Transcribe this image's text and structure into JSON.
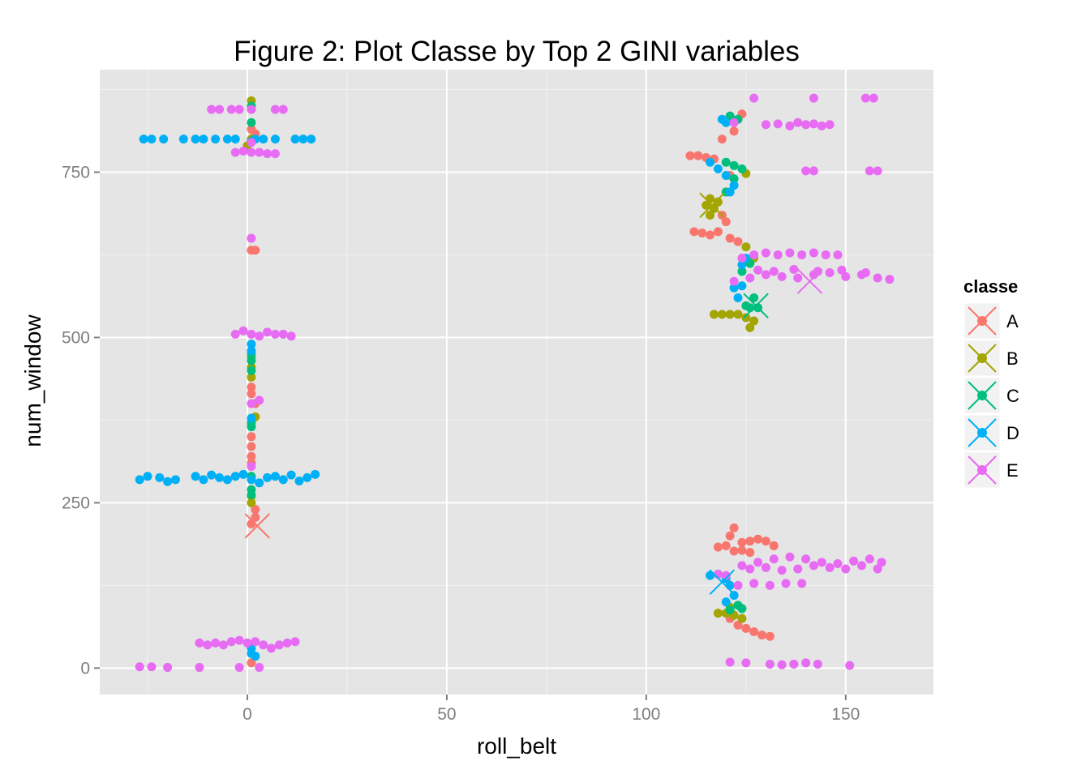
{
  "chart_data": {
    "type": "scatter",
    "title": "Figure 2: Plot Classe by Top 2 GINI variables",
    "xlabel": "roll_belt",
    "ylabel": "num_window",
    "xlim": [
      -37,
      172
    ],
    "ylim": [
      -40,
      905
    ],
    "x_ticks": [
      0,
      50,
      100,
      150
    ],
    "y_ticks": [
      0,
      250,
      500,
      750
    ],
    "grid": true,
    "background": "#E5E5E5",
    "legend": {
      "title": "classe",
      "position": "right"
    },
    "series": [
      {
        "name": "A",
        "color": "#F8766D",
        "centroid": [
          2.5,
          215
        ],
        "points": [
          [
            1,
            632
          ],
          [
            2,
            632
          ],
          [
            1,
            815
          ],
          [
            2,
            808
          ],
          [
            1,
            425
          ],
          [
            1,
            415
          ],
          [
            2,
            400
          ],
          [
            1,
            350
          ],
          [
            1,
            335
          ],
          [
            1,
            320
          ],
          [
            1,
            310
          ],
          [
            2,
            240
          ],
          [
            2,
            228
          ],
          [
            1,
            218
          ],
          [
            1,
            8
          ],
          [
            111,
            775
          ],
          [
            113,
            775
          ],
          [
            115,
            772
          ],
          [
            117,
            770
          ],
          [
            121,
            745
          ],
          [
            112,
            660
          ],
          [
            114,
            658
          ],
          [
            116,
            655
          ],
          [
            118,
            660
          ],
          [
            120,
            675
          ],
          [
            119,
            685
          ],
          [
            121,
            650
          ],
          [
            123,
            645
          ],
          [
            119,
            800
          ],
          [
            122,
            812
          ],
          [
            124,
            838
          ],
          [
            118,
            183
          ],
          [
            120,
            185
          ],
          [
            121,
            200
          ],
          [
            122,
            212
          ],
          [
            124,
            190
          ],
          [
            126,
            192
          ],
          [
            128,
            195
          ],
          [
            130,
            192
          ],
          [
            132,
            185
          ],
          [
            122,
            177
          ],
          [
            124,
            178
          ],
          [
            126,
            175
          ],
          [
            121,
            75
          ],
          [
            123,
            65
          ],
          [
            125,
            60
          ],
          [
            127,
            55
          ],
          [
            129,
            50
          ],
          [
            131,
            48
          ]
        ]
      },
      {
        "name": "B",
        "color": "#A3A500",
        "centroid": [
          116.5,
          700
        ],
        "points": [
          [
            1,
            858
          ],
          [
            1,
            845
          ],
          [
            1,
            800
          ],
          [
            0,
            790
          ],
          [
            1,
            470
          ],
          [
            1,
            455
          ],
          [
            1,
            440
          ],
          [
            2,
            380
          ],
          [
            1,
            370
          ],
          [
            1,
            260
          ],
          [
            1,
            250
          ],
          [
            115,
            700
          ],
          [
            117,
            695
          ],
          [
            116,
            685
          ],
          [
            118,
            705
          ],
          [
            116,
            710
          ],
          [
            125,
            748
          ],
          [
            125,
            637
          ],
          [
            127,
            620
          ],
          [
            117,
            535
          ],
          [
            119,
            535
          ],
          [
            121,
            535
          ],
          [
            123,
            535
          ],
          [
            125,
            530
          ],
          [
            127,
            525
          ],
          [
            126,
            515
          ],
          [
            118,
            83
          ],
          [
            120,
            83
          ],
          [
            122,
            80
          ],
          [
            124,
            75
          ],
          [
            121,
            92
          ]
        ]
      },
      {
        "name": "C",
        "color": "#00BF7D",
        "centroid": [
          127.5,
          548
        ],
        "points": [
          [
            1,
            850
          ],
          [
            1,
            825
          ],
          [
            1,
            797
          ],
          [
            1,
            475
          ],
          [
            1,
            465
          ],
          [
            1,
            450
          ],
          [
            1,
            372
          ],
          [
            1,
            365
          ],
          [
            1,
            270
          ],
          [
            1,
            262
          ],
          [
            1,
            290
          ],
          [
            120,
            765
          ],
          [
            122,
            760
          ],
          [
            124,
            755
          ],
          [
            122,
            740
          ],
          [
            120,
            720
          ],
          [
            126,
            612
          ],
          [
            124,
            600
          ],
          [
            127,
            560
          ],
          [
            126,
            545
          ],
          [
            128,
            545
          ],
          [
            125,
            548
          ],
          [
            121,
            835
          ],
          [
            123,
            830
          ],
          [
            123,
            95
          ],
          [
            121,
            88
          ],
          [
            124,
            90
          ]
        ]
      },
      {
        "name": "D",
        "color": "#00B0F6",
        "centroid": [
          119,
          130
        ],
        "points": [
          [
            -26,
            800
          ],
          [
            -24,
            800
          ],
          [
            -21,
            800
          ],
          [
            -16,
            800
          ],
          [
            -13,
            800
          ],
          [
            -11,
            800
          ],
          [
            -8,
            800
          ],
          [
            -5,
            800
          ],
          [
            -3,
            800
          ],
          [
            2,
            800
          ],
          [
            4,
            800
          ],
          [
            7,
            800
          ],
          [
            12,
            800
          ],
          [
            14,
            800
          ],
          [
            16,
            800
          ],
          [
            -27,
            285
          ],
          [
            -25,
            290
          ],
          [
            -22,
            288
          ],
          [
            -20,
            282
          ],
          [
            -18,
            285
          ],
          [
            -13,
            290
          ],
          [
            -11,
            285
          ],
          [
            -9,
            292
          ],
          [
            -7,
            288
          ],
          [
            -5,
            285
          ],
          [
            -3,
            290
          ],
          [
            -1,
            293
          ],
          [
            1,
            285
          ],
          [
            3,
            280
          ],
          [
            5,
            288
          ],
          [
            7,
            290
          ],
          [
            9,
            285
          ],
          [
            11,
            292
          ],
          [
            13,
            283
          ],
          [
            15,
            288
          ],
          [
            17,
            293
          ],
          [
            1,
            490
          ],
          [
            1,
            480
          ],
          [
            1,
            378
          ],
          [
            1,
            30
          ],
          [
            1,
            22
          ],
          [
            2,
            18
          ],
          [
            116,
            765
          ],
          [
            118,
            755
          ],
          [
            120,
            745
          ],
          [
            122,
            730
          ],
          [
            121,
            720
          ],
          [
            119,
            830
          ],
          [
            120,
            825
          ],
          [
            124,
            578
          ],
          [
            122,
            575
          ],
          [
            123,
            560
          ],
          [
            124,
            610
          ],
          [
            125,
            620
          ],
          [
            116,
            140
          ],
          [
            118,
            142
          ],
          [
            120,
            135
          ],
          [
            121,
            125
          ],
          [
            122,
            110
          ],
          [
            120,
            100
          ]
        ]
      },
      {
        "name": "E",
        "color": "#E76BF3",
        "centroid": [
          141,
          585
        ],
        "points": [
          [
            -9,
            845
          ],
          [
            -7,
            845
          ],
          [
            -4,
            845
          ],
          [
            -2,
            845
          ],
          [
            1,
            845
          ],
          [
            7,
            845
          ],
          [
            9,
            845
          ],
          [
            -3,
            780
          ],
          [
            -1,
            782
          ],
          [
            1,
            780
          ],
          [
            3,
            780
          ],
          [
            5,
            778
          ],
          [
            7,
            778
          ],
          [
            1,
            795
          ],
          [
            1,
            650
          ],
          [
            -3,
            505
          ],
          [
            -1,
            510
          ],
          [
            1,
            505
          ],
          [
            3,
            502
          ],
          [
            5,
            508
          ],
          [
            7,
            505
          ],
          [
            9,
            505
          ],
          [
            11,
            502
          ],
          [
            1,
            400
          ],
          [
            3,
            405
          ],
          [
            1,
            305
          ],
          [
            -12,
            38
          ],
          [
            -10,
            35
          ],
          [
            -8,
            38
          ],
          [
            -6,
            35
          ],
          [
            -4,
            40
          ],
          [
            -2,
            42
          ],
          [
            0,
            38
          ],
          [
            2,
            40
          ],
          [
            4,
            35
          ],
          [
            6,
            30
          ],
          [
            8,
            35
          ],
          [
            10,
            38
          ],
          [
            12,
            40
          ],
          [
            -27,
            2
          ],
          [
            -24,
            2
          ],
          [
            -20,
            1
          ],
          [
            -12,
            1
          ],
          [
            -2,
            1
          ],
          [
            3,
            1
          ],
          [
            127,
            862
          ],
          [
            142,
            862
          ],
          [
            155,
            862
          ],
          [
            157,
            862
          ],
          [
            122,
            825
          ],
          [
            130,
            822
          ],
          [
            133,
            823
          ],
          [
            136,
            820
          ],
          [
            138,
            825
          ],
          [
            140,
            822
          ],
          [
            142,
            823
          ],
          [
            144,
            820
          ],
          [
            146,
            822
          ],
          [
            140,
            752
          ],
          [
            142,
            752
          ],
          [
            156,
            752
          ],
          [
            158,
            752
          ],
          [
            124,
            620
          ],
          [
            127,
            625
          ],
          [
            130,
            628
          ],
          [
            133,
            625
          ],
          [
            136,
            628
          ],
          [
            139,
            625
          ],
          [
            142,
            628
          ],
          [
            145,
            625
          ],
          [
            148,
            625
          ],
          [
            122,
            585
          ],
          [
            126,
            590
          ],
          [
            130,
            595
          ],
          [
            134,
            592
          ],
          [
            138,
            590
          ],
          [
            142,
            595
          ],
          [
            146,
            598
          ],
          [
            150,
            592
          ],
          [
            154,
            595
          ],
          [
            158,
            590
          ],
          [
            161,
            588
          ],
          [
            128,
            602
          ],
          [
            132,
            600
          ],
          [
            137,
            603
          ],
          [
            143,
            600
          ],
          [
            149,
            602
          ],
          [
            155,
            598
          ],
          [
            118,
            142
          ],
          [
            120,
            140
          ],
          [
            124,
            155
          ],
          [
            128,
            160
          ],
          [
            132,
            165
          ],
          [
            136,
            168
          ],
          [
            140,
            165
          ],
          [
            144,
            160
          ],
          [
            148,
            158
          ],
          [
            152,
            162
          ],
          [
            156,
            165
          ],
          [
            159,
            160
          ],
          [
            126,
            150
          ],
          [
            130,
            152
          ],
          [
            134,
            148
          ],
          [
            138,
            150
          ],
          [
            142,
            155
          ],
          [
            146,
            152
          ],
          [
            150,
            150
          ],
          [
            154,
            155
          ],
          [
            158,
            150
          ],
          [
            123,
            125
          ],
          [
            127,
            128
          ],
          [
            131,
            125
          ],
          [
            135,
            128
          ],
          [
            139,
            128
          ],
          [
            121,
            9
          ],
          [
            125,
            8
          ],
          [
            131,
            6
          ],
          [
            134,
            5
          ],
          [
            137,
            6
          ],
          [
            140,
            8
          ],
          [
            143,
            6
          ],
          [
            151,
            4
          ]
        ]
      }
    ]
  }
}
